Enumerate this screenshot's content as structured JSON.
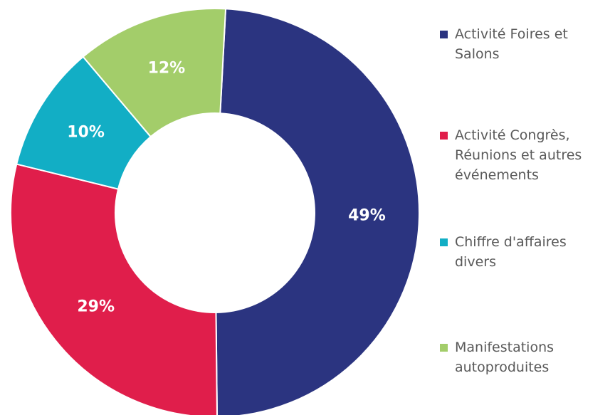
{
  "chart_data": {
    "type": "pie",
    "categories": [
      "Activité Foires et Salons",
      "Activité Congrès, Réunions et autres événements",
      "Chiffre d'affaires divers",
      "Manifestations autoproduites"
    ],
    "values": [
      49,
      29,
      10,
      12
    ],
    "value_labels": [
      "49%",
      "29%",
      "10%",
      "12%"
    ],
    "colors": [
      "#2b3480",
      "#e01e4b",
      "#12aec5",
      "#a3cd6a"
    ],
    "donut": true,
    "legend": "right"
  }
}
